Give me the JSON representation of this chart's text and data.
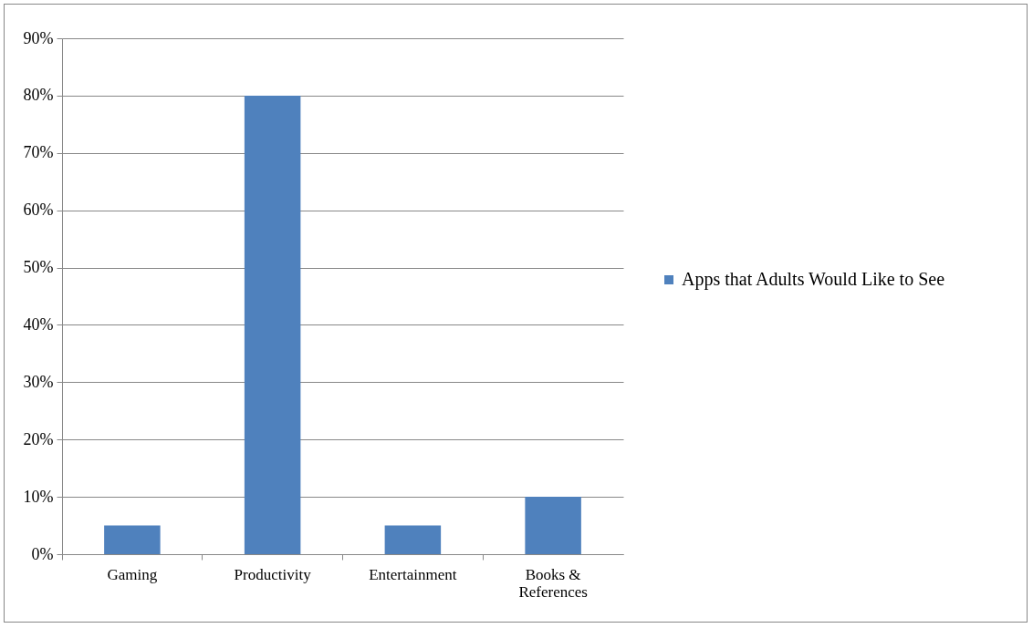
{
  "chart_data": {
    "type": "bar",
    "categories": [
      "Gaming",
      "Productivity",
      "Entertainment",
      "Books & References"
    ],
    "series": [
      {
        "name": "Apps that Adults Would Like to See",
        "color": "#4f81bd",
        "values": [
          5,
          80,
          5,
          10
        ]
      }
    ],
    "ylim": [
      0,
      90
    ],
    "yticks": [
      {
        "value": 0,
        "label": "0%"
      },
      {
        "value": 10,
        "label": "10%"
      },
      {
        "value": 20,
        "label": "20%"
      },
      {
        "value": 30,
        "label": "30%"
      },
      {
        "value": 40,
        "label": "40%"
      },
      {
        "value": 50,
        "label": "50%"
      },
      {
        "value": 60,
        "label": "60%"
      },
      {
        "value": 70,
        "label": "70%"
      },
      {
        "value": 80,
        "label": "80%"
      },
      {
        "value": 90,
        "label": "90%"
      }
    ],
    "grid": "y",
    "legend": "right"
  }
}
